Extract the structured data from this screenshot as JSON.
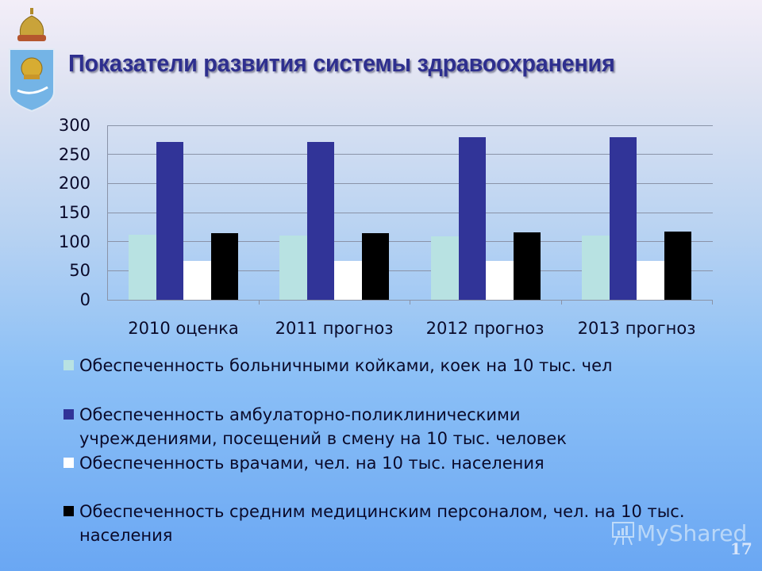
{
  "slide": {
    "title": "Показатели развития системы здравоохранения",
    "page_number": "17",
    "watermark": "MyShared",
    "emblem": "astrakhan-coat-of-arms-icon"
  },
  "chart_data": {
    "type": "bar",
    "title": "Показатели развития системы здравоохранения",
    "xlabel": "",
    "ylabel": "",
    "ylim": [
      0,
      300
    ],
    "yticks": [
      "0",
      "50",
      "100",
      "150",
      "200",
      "250",
      "300"
    ],
    "grid": true,
    "legend_position": "bottom",
    "categories": [
      "2010 оценка",
      "2011 прогноз",
      "2012 прогноз",
      "2013 прогноз"
    ],
    "series": [
      {
        "name": "Обеспеченность больничными койками, коек на 10 тыс. чел",
        "color": "#b8e2e2",
        "values": [
          112,
          110,
          109,
          110
        ]
      },
      {
        "name": "Обеспеченность амбулаторно-поликлиническими учреждениями, посещений в смену на 10 тыс. человек",
        "color": "#313498",
        "values": [
          271,
          271,
          280,
          280
        ]
      },
      {
        "name": "Обеспеченность врачами, чел. на 10 тыс. населения",
        "color": "#ffffff",
        "values": [
          67,
          67,
          67,
          67
        ]
      },
      {
        "name": "Обеспеченность средним медицинским персоналом, чел. на 10 тыс. населения",
        "color": "#000000",
        "values": [
          115,
          115,
          116,
          117
        ]
      }
    ]
  },
  "legend": {
    "items": [
      {
        "label": "Обеспеченность больничными койками, коек на 10 тыс. чел"
      },
      {
        "label": "Обеспеченность амбулаторно-поликлиническими учреждениями, посещений в смену на 10 тыс. человек"
      },
      {
        "label": "Обеспеченность врачами, чел. на 10 тыс. населения"
      },
      {
        "label": "Обеспеченность средним медицинским персоналом, чел. на 10 тыс. населения"
      }
    ]
  }
}
